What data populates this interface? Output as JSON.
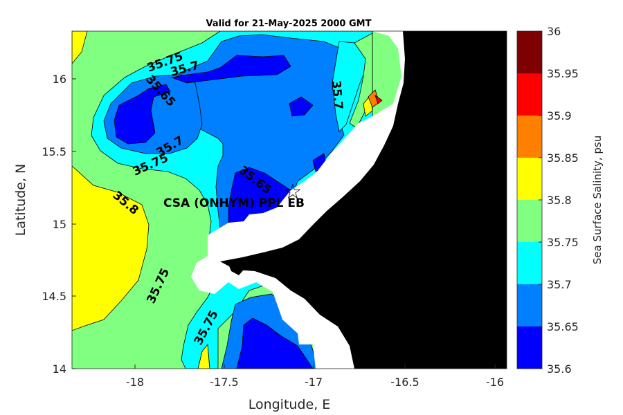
{
  "title": "Valid for 21-May-2025 2000 GMT",
  "xlabel": "Longitude, E",
  "ylabel": "Latitude, N",
  "xticks": [
    "-18",
    "-17.5",
    "-17",
    "-16.5",
    "-16"
  ],
  "yticks": [
    "16",
    "15.5",
    "15",
    "14.5",
    "14"
  ],
  "colorbar": {
    "label": "Sea Surface Salinity, psu",
    "ticks": [
      "36",
      "35.95",
      "35.9",
      "35.85",
      "35.8",
      "35.75",
      "35.7",
      "35.65",
      "35.6"
    ],
    "colors": [
      "#7f0000",
      "#ff0000",
      "#ff7f00",
      "#ffff00",
      "#80ff80",
      "#00ffff",
      "#0080ff",
      "#0000ff"
    ]
  },
  "station": {
    "label": "CSA (ONHYM) PPL EB"
  },
  "contour_labels": [
    "35.75",
    "35.7",
    "35.65",
    "35.7",
    "35.7",
    "35.75",
    "35.65",
    "35.8",
    "35.75",
    "35.75"
  ],
  "chart_data": {
    "type": "heatmap",
    "title": "Valid for 21-May-2025 2000 GMT",
    "xlabel": "Longitude, E",
    "ylabel": "Latitude, N",
    "xlim": [
      -18.35,
      -15.93
    ],
    "ylim": [
      14.0,
      16.33
    ],
    "colorbar_range": [
      35.6,
      36.0
    ],
    "colorbar_levels": [
      35.6,
      35.65,
      35.7,
      35.75,
      35.8,
      35.85,
      35.9,
      35.95,
      36.0
    ],
    "station": {
      "lon": -17.1,
      "lat": 15.22
    }
  }
}
